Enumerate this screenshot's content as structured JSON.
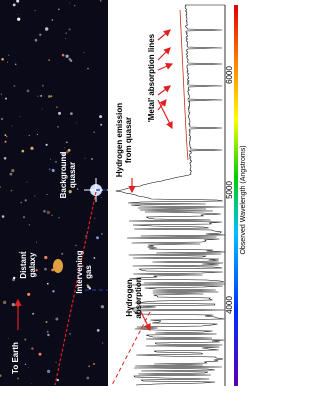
{
  "labels": {
    "to_earth": "To Earth",
    "distant_galaxy": [
      "Distant",
      "galaxy"
    ],
    "intervening_gas": [
      "Intervening",
      "gas"
    ],
    "background_quasar": [
      "Background",
      "quasar"
    ],
    "hydrogen_emission": [
      "Hydrogen emission",
      "from quasar"
    ],
    "hydrogen_absorption": [
      "Hydrogen",
      "absorption"
    ],
    "metal_lines": "'Metal' absorption lines"
  },
  "axis": {
    "ticks": [
      "4000",
      "5000",
      "6000"
    ],
    "title": "Observed Wavelength (Angstroms)"
  }
}
